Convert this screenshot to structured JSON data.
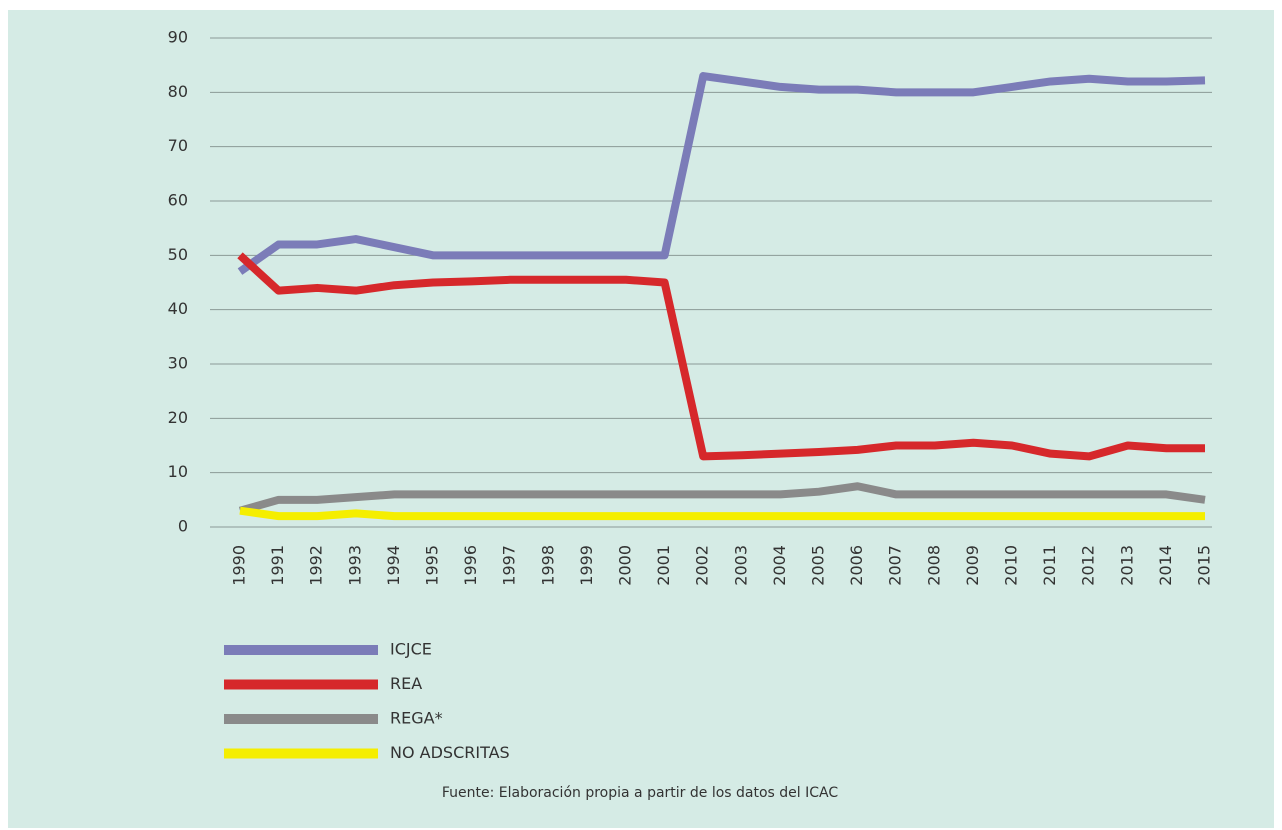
{
  "chart_data": {
    "type": "line",
    "categories": [
      "1990",
      "1991",
      "1992",
      "1993",
      "1994",
      "1995",
      "1996",
      "1997",
      "1998",
      "1999",
      "2000",
      "2001",
      "2002",
      "2003",
      "2004",
      "2005",
      "2006",
      "2007",
      "2008",
      "2009",
      "2010",
      "2011",
      "2012",
      "2013",
      "2014",
      "2015"
    ],
    "series": [
      {
        "name": "ICJCE",
        "color": "#7b7cb8",
        "values": [
          47,
          52,
          52,
          53,
          51.5,
          50,
          50,
          50,
          50,
          50,
          50,
          50,
          83,
          82,
          81,
          80.5,
          80.5,
          80,
          80,
          80,
          81,
          82,
          82.5,
          82,
          82,
          82.2
        ]
      },
      {
        "name": "REA",
        "color": "#d6282b",
        "values": [
          50,
          43.5,
          44,
          43.5,
          44.5,
          45,
          45.2,
          45.5,
          45.5,
          45.5,
          45.5,
          45,
          13,
          13.2,
          13.5,
          13.8,
          14.2,
          15,
          15,
          15.5,
          15,
          13.5,
          13,
          15,
          14.5,
          14.5
        ]
      },
      {
        "name": "REGA*",
        "color": "#8a8a8a",
        "values": [
          3,
          5,
          5,
          5.5,
          6,
          6,
          6,
          6,
          6,
          6,
          6,
          6,
          6,
          6,
          6,
          6.5,
          7.5,
          6,
          6,
          6,
          6,
          6,
          6,
          6,
          6,
          5
        ]
      },
      {
        "name": "NO ADSCRITAS",
        "color": "#f5ee00",
        "values": [
          3,
          2,
          2,
          2.5,
          2,
          2,
          2,
          2,
          2,
          2,
          2,
          2,
          2,
          2,
          2,
          2,
          2,
          2,
          2,
          2,
          2,
          2,
          2,
          2,
          2,
          2
        ]
      }
    ],
    "ylim": [
      0,
      90
    ],
    "yticks": [
      0,
      10,
      20,
      30,
      40,
      50,
      60,
      70,
      80,
      90
    ],
    "grid": true,
    "source": "Fuente: Elaboración propia a partir de los datos del ICAC"
  }
}
